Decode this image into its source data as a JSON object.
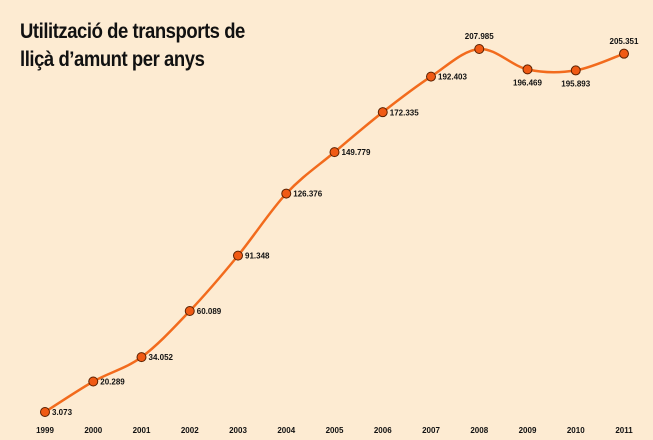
{
  "chart_data": {
    "type": "line",
    "title": "Utilització de transports de lliçà d’amunt per anys",
    "categories": [
      "1999",
      "2000",
      "2001",
      "2002",
      "2003",
      "2004",
      "2005",
      "2006",
      "2007",
      "2008",
      "2009",
      "2010",
      "2011"
    ],
    "values": [
      3073,
      20289,
      34052,
      60089,
      91348,
      126376,
      149779,
      172335,
      192403,
      207985,
      196469,
      195893,
      205351
    ],
    "value_labels": [
      "3.073",
      "20.289",
      "34.052",
      "60.089",
      "91.348",
      "126.376",
      "149.779",
      "172.335",
      "192.403",
      "207.985",
      "196.469",
      "195.893",
      "205.351"
    ],
    "color": "#f26b1d",
    "marker_color": "#f05a14"
  }
}
